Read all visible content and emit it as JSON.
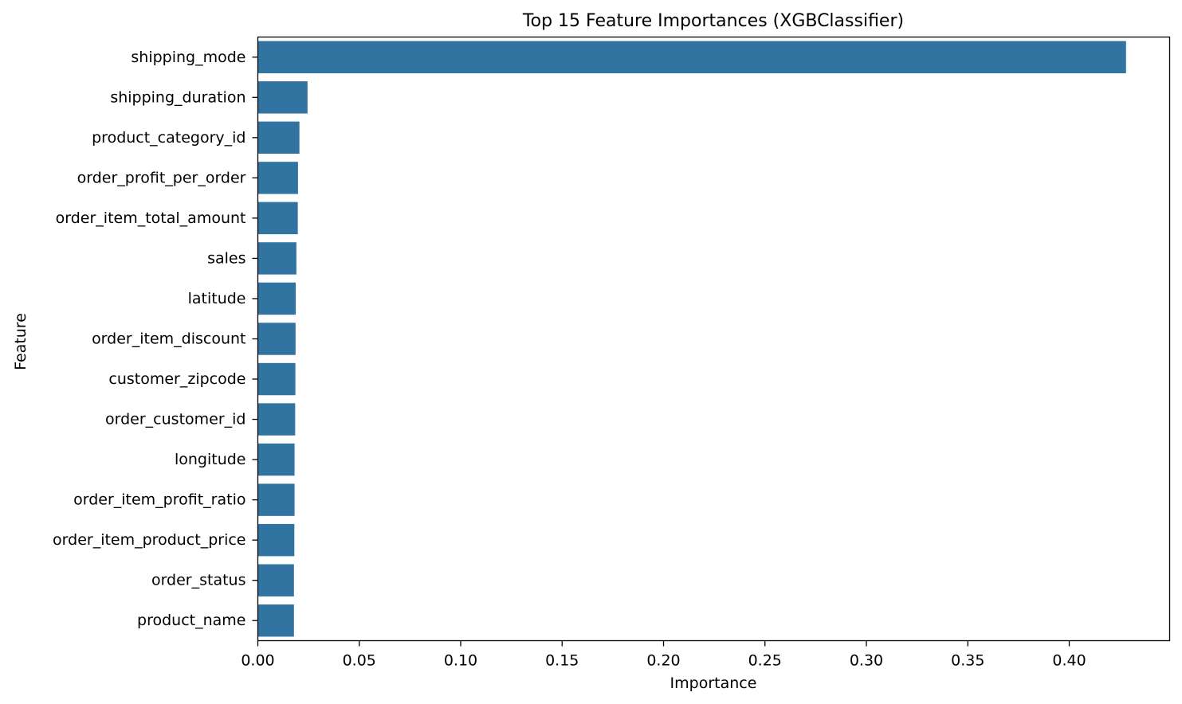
{
  "chart_data": {
    "type": "bar",
    "orientation": "horizontal",
    "title": "Top 15 Feature Importances (XGBClassifier)",
    "xlabel": "Importance",
    "ylabel": "Feature",
    "xlim": [
      0,
      0.4495
    ],
    "xticks": [
      "0.00",
      "0.05",
      "0.10",
      "0.15",
      "0.20",
      "0.25",
      "0.30",
      "0.35",
      "0.40"
    ],
    "xtick_values": [
      0.0,
      0.05,
      0.1,
      0.15,
      0.2,
      0.25,
      0.3,
      0.35,
      0.4
    ],
    "grid": false,
    "legend": "none",
    "bar_color": "#3274a1",
    "categories": [
      "shipping_mode",
      "shipping_duration",
      "product_category_id",
      "order_profit_per_order",
      "order_item_total_amount",
      "sales",
      "latitude",
      "order_item_discount",
      "customer_zipcode",
      "order_customer_id",
      "longitude",
      "order_item_profit_ratio",
      "order_item_product_price",
      "order_status",
      "product_name"
    ],
    "values": [
      0.428,
      0.0245,
      0.0205,
      0.0198,
      0.0197,
      0.019,
      0.0187,
      0.0186,
      0.0185,
      0.0184,
      0.0181,
      0.0181,
      0.018,
      0.0178,
      0.0178
    ]
  }
}
